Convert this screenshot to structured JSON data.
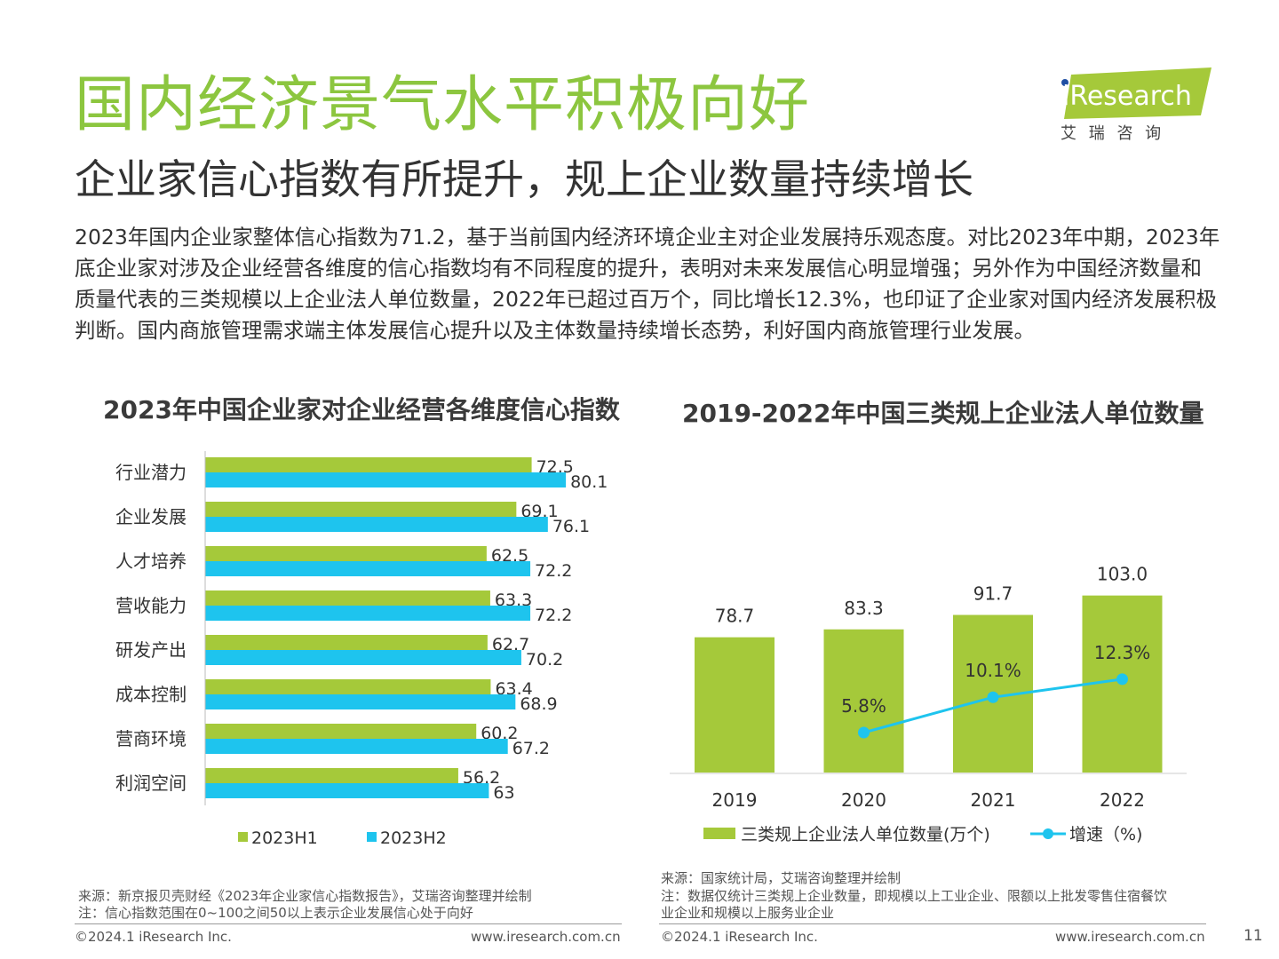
{
  "header": {
    "title": "国内经济景气水平积极向好",
    "subtitle": "企业家信心指数有所提升，规上企业数量持续增长",
    "logo_text": "iResearch",
    "logo_cn": "艾 瑞 咨 询"
  },
  "intro": "2023年国内企业家整体信心指数为71.2，基于当前国内经济环境企业主对企业发展持乐观态度。对比2023年中期，2023年底企业家对涉及企业经营各维度的信心指数均有不同程度的提升，表明对未来发展信心明显增强；另外作为中国经济数量和质量代表的三类规模以上企业法人单位数量，2022年已超过百万个，同比增长12.3%，也印证了企业家对国内经济发展积极判断。国内商旅管理需求端主体发展信心提升以及主体数量持续增长态势，利好国内商旅管理行业发展。",
  "colors": {
    "green": "#a5c93a",
    "cyan": "#1ec4ee",
    "title_green": "#8cc63f"
  },
  "chart_data": [
    {
      "type": "bar",
      "orientation": "horizontal",
      "title": "2023年中国企业家对企业经营各维度信心指数",
      "categories": [
        "行业潜力",
        "企业发展",
        "人才培养",
        "营收能力",
        "研发产出",
        "成本控制",
        "营商环境",
        "利润空间"
      ],
      "series": [
        {
          "name": "2023H1",
          "values": [
            72.5,
            69.1,
            62.5,
            63.3,
            62.7,
            63.4,
            60.2,
            56.2
          ],
          "labels": [
            "72.5",
            "69.1",
            "62.5",
            "63.3",
            "62.7",
            "63.4",
            "60.2",
            "56.2"
          ],
          "color": "#a5c93a"
        },
        {
          "name": "2023H2",
          "values": [
            80.1,
            76.1,
            72.2,
            72.2,
            70.2,
            68.9,
            67.2,
            63
          ],
          "labels": [
            "80.1",
            "76.1",
            "72.2",
            "72.2",
            "70.2",
            "68.9",
            "67.2",
            "63"
          ],
          "color": "#1ec4ee"
        }
      ],
      "xlim": [
        0,
        100
      ],
      "legend": "bottom",
      "source": "来源：新京报贝壳财经《2023年企业家信心指数报告》，艾瑞咨询整理并绘制",
      "note": "注：信心指数范围在0~100之间50以上表示企业发展信心处于向好"
    },
    {
      "type": "bar+line",
      "title": "2019-2022年中国三类规上企业法人单位数量",
      "categories": [
        "2019",
        "2020",
        "2021",
        "2022"
      ],
      "series": [
        {
          "name": "三类规上企业法人单位数量(万个)",
          "type": "bar",
          "values": [
            78.7,
            83.3,
            91.7,
            103.0
          ],
          "labels": [
            "78.7",
            "83.3",
            "91.7",
            "103.0"
          ],
          "color": "#a5c93a"
        },
        {
          "name": "增速（%)",
          "type": "line",
          "values": [
            null,
            5.8,
            10.1,
            12.3
          ],
          "labels": [
            "",
            "5.8%",
            "10.1%",
            "12.3%"
          ],
          "color": "#1ec4ee"
        }
      ],
      "legend": "bottom",
      "source": "来源：国家统计局，艾瑞咨询整理并绘制",
      "note_line1": "注：数据仅统计三类规上企业数量，即规模以上工业企业、限额以上批发零售住宿餐饮",
      "note_line2": "业企业和规模以上服务业企业"
    }
  ],
  "footer": {
    "copyright_left": "©2024.1 iResearch Inc.",
    "url_left": "www.iresearch.com.cn",
    "copyright_right": "©2024.1 iResearch Inc.",
    "url_right": "www.iresearch.com.cn",
    "page_number": "11"
  }
}
